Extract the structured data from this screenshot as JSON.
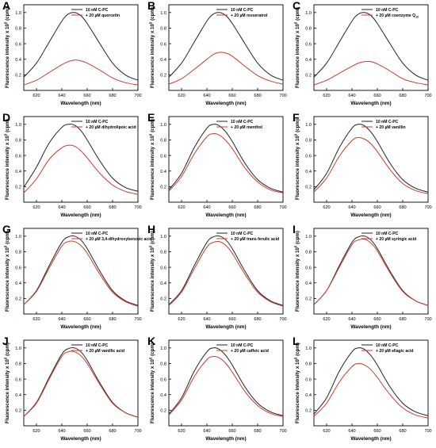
{
  "figure": {
    "x_axis_label": "Wavelength (nm)",
    "y_axis_label_prefix": "Fluorescence intensity x 10",
    "y_axis_label_exponent": "5",
    "y_axis_label_suffix": " (cpm)",
    "control_series_name": "10 nM C-PC",
    "colors": {
      "control": "#222222",
      "treated": "#d03a2a",
      "axis": "#000000"
    }
  },
  "chart_data": [
    {
      "panel": "A",
      "type": "line",
      "x": [
        610,
        620,
        630,
        640,
        645,
        650,
        655,
        660,
        670,
        680,
        690,
        700
      ],
      "xlim": [
        610,
        700
      ],
      "ylim": [
        0,
        1.1
      ],
      "xticks": [
        620,
        640,
        660,
        680,
        700
      ],
      "yticks": [
        0.2,
        0.4,
        0.6,
        0.8,
        1.0
      ],
      "series": [
        {
          "name": "10 nM C-PC",
          "values": [
            0.17,
            0.35,
            0.62,
            0.89,
            0.98,
            1.0,
            0.96,
            0.86,
            0.6,
            0.35,
            0.2,
            0.13
          ]
        },
        {
          "name": "+ 20  µM quercetin",
          "values": [
            0.07,
            0.13,
            0.23,
            0.33,
            0.37,
            0.39,
            0.38,
            0.35,
            0.26,
            0.16,
            0.1,
            0.07
          ]
        }
      ]
    },
    {
      "panel": "B",
      "type": "line",
      "x": [
        610,
        620,
        630,
        640,
        645,
        650,
        655,
        660,
        670,
        680,
        690,
        700
      ],
      "xlim": [
        610,
        700
      ],
      "ylim": [
        0,
        1.1
      ],
      "xticks": [
        620,
        640,
        660,
        680,
        700
      ],
      "yticks": [
        0.2,
        0.4,
        0.6,
        0.8,
        1.0
      ],
      "series": [
        {
          "name": "10 nM C-PC",
          "values": [
            0.17,
            0.35,
            0.62,
            0.89,
            0.98,
            1.0,
            0.96,
            0.86,
            0.6,
            0.35,
            0.2,
            0.13
          ]
        },
        {
          "name": "+ 20  µM resveratrol",
          "values": [
            0.08,
            0.15,
            0.27,
            0.4,
            0.46,
            0.49,
            0.48,
            0.44,
            0.31,
            0.19,
            0.12,
            0.08
          ]
        }
      ]
    },
    {
      "panel": "C",
      "type": "line",
      "x": [
        610,
        620,
        630,
        640,
        645,
        650,
        655,
        660,
        670,
        680,
        690,
        700
      ],
      "xlim": [
        610,
        700
      ],
      "ylim": [
        0,
        1.1
      ],
      "xticks": [
        620,
        640,
        660,
        680,
        700
      ],
      "yticks": [
        0.2,
        0.4,
        0.6,
        0.8,
        1.0
      ],
      "series": [
        {
          "name": "10 nM C-PC",
          "values": [
            0.17,
            0.35,
            0.62,
            0.89,
            0.98,
            1.0,
            0.96,
            0.86,
            0.6,
            0.35,
            0.2,
            0.13
          ]
        },
        {
          "name": "+ 20  µM coenzyme Q",
          "name_subscript": "10",
          "values": [
            0.07,
            0.13,
            0.22,
            0.31,
            0.35,
            0.37,
            0.37,
            0.34,
            0.25,
            0.15,
            0.1,
            0.07
          ]
        }
      ]
    },
    {
      "panel": "D",
      "type": "line",
      "x": [
        610,
        620,
        630,
        640,
        645,
        650,
        655,
        660,
        670,
        680,
        690,
        700
      ],
      "xlim": [
        610,
        700
      ],
      "ylim": [
        0,
        1.1
      ],
      "xticks": [
        620,
        640,
        660,
        680,
        700
      ],
      "yticks": [
        0.2,
        0.4,
        0.6,
        0.8,
        1.0
      ],
      "series": [
        {
          "name": "10 nM C-PC",
          "values": [
            0.19,
            0.45,
            0.76,
            0.96,
            1.0,
            0.99,
            0.92,
            0.8,
            0.53,
            0.31,
            0.19,
            0.14
          ]
        },
        {
          "name": "+ 20  µM dihydrolipoic acid",
          "values": [
            0.12,
            0.3,
            0.55,
            0.7,
            0.73,
            0.72,
            0.66,
            0.57,
            0.37,
            0.22,
            0.14,
            0.1
          ]
        }
      ]
    },
    {
      "panel": "E",
      "type": "line",
      "x": [
        610,
        620,
        630,
        640,
        645,
        650,
        655,
        660,
        670,
        680,
        690,
        700
      ],
      "xlim": [
        610,
        700
      ],
      "ylim": [
        0,
        1.1
      ],
      "xticks": [
        620,
        640,
        660,
        680,
        700
      ],
      "yticks": [
        0.2,
        0.4,
        0.6,
        0.8,
        1.0
      ],
      "series": [
        {
          "name": "10 nM C-PC",
          "values": [
            0.16,
            0.37,
            0.7,
            0.95,
            1.0,
            0.98,
            0.9,
            0.78,
            0.5,
            0.29,
            0.18,
            0.13
          ]
        },
        {
          "name": "+ 20  µM menthol",
          "values": [
            0.14,
            0.33,
            0.62,
            0.84,
            0.88,
            0.86,
            0.79,
            0.69,
            0.44,
            0.26,
            0.16,
            0.12
          ]
        }
      ]
    },
    {
      "panel": "F",
      "type": "line",
      "x": [
        610,
        620,
        630,
        640,
        645,
        650,
        655,
        660,
        670,
        680,
        690,
        700
      ],
      "xlim": [
        610,
        700
      ],
      "ylim": [
        0,
        1.1
      ],
      "xticks": [
        620,
        640,
        660,
        680,
        700
      ],
      "yticks": [
        0.2,
        0.4,
        0.6,
        0.8,
        1.0
      ],
      "series": [
        {
          "name": "10 nM C-PC",
          "values": [
            0.16,
            0.37,
            0.7,
            0.95,
            1.0,
            0.98,
            0.9,
            0.78,
            0.5,
            0.29,
            0.18,
            0.13
          ]
        },
        {
          "name": "+ 20  µM vanillin",
          "values": [
            0.13,
            0.31,
            0.59,
            0.79,
            0.83,
            0.81,
            0.75,
            0.65,
            0.42,
            0.24,
            0.15,
            0.11
          ]
        }
      ]
    },
    {
      "panel": "G",
      "type": "line",
      "x": [
        610,
        620,
        630,
        640,
        645,
        650,
        655,
        660,
        670,
        680,
        690,
        700
      ],
      "xlim": [
        610,
        700
      ],
      "ylim": [
        0,
        1.1
      ],
      "xticks": [
        620,
        640,
        660,
        680,
        700
      ],
      "yticks": [
        0.2,
        0.4,
        0.6,
        0.8,
        1.0
      ],
      "series": [
        {
          "name": "10 nM C-PC",
          "values": [
            0.12,
            0.3,
            0.62,
            0.92,
            0.99,
            1.0,
            0.95,
            0.84,
            0.55,
            0.3,
            0.17,
            0.11
          ]
        },
        {
          "name": "+ 20  µM 3,4-dihydroxybenzoic acid",
          "values": [
            0.12,
            0.29,
            0.59,
            0.87,
            0.93,
            0.93,
            0.88,
            0.78,
            0.51,
            0.28,
            0.16,
            0.1
          ]
        }
      ]
    },
    {
      "panel": "H",
      "type": "line",
      "x": [
        610,
        620,
        630,
        640,
        645,
        650,
        655,
        660,
        670,
        680,
        690,
        700
      ],
      "xlim": [
        610,
        700
      ],
      "ylim": [
        0,
        1.1
      ],
      "xticks": [
        620,
        640,
        660,
        680,
        700
      ],
      "yticks": [
        0.2,
        0.4,
        0.6,
        0.8,
        1.0
      ],
      "series": [
        {
          "name": "10 nM C-PC",
          "values": [
            0.12,
            0.3,
            0.62,
            0.92,
            0.99,
            1.0,
            0.95,
            0.84,
            0.55,
            0.3,
            0.17,
            0.11
          ]
        },
        {
          "name": "+ 20  µM trans-ferulic acid",
          "values": [
            0.11,
            0.28,
            0.58,
            0.86,
            0.92,
            0.93,
            0.88,
            0.78,
            0.51,
            0.28,
            0.16,
            0.1
          ]
        }
      ]
    },
    {
      "panel": "I",
      "type": "line",
      "x": [
        610,
        620,
        630,
        640,
        645,
        650,
        655,
        660,
        670,
        680,
        690,
        700
      ],
      "xlim": [
        610,
        700
      ],
      "ylim": [
        0,
        1.1
      ],
      "xticks": [
        620,
        640,
        660,
        680,
        700
      ],
      "yticks": [
        0.2,
        0.4,
        0.6,
        0.8,
        1.0
      ],
      "series": [
        {
          "name": "10 nM C-PC",
          "values": [
            0.12,
            0.3,
            0.62,
            0.92,
            0.99,
            1.0,
            0.95,
            0.84,
            0.55,
            0.3,
            0.17,
            0.11
          ]
        },
        {
          "name": "+ 20  µM syringic acid",
          "values": [
            0.12,
            0.3,
            0.6,
            0.89,
            0.95,
            0.96,
            0.91,
            0.81,
            0.53,
            0.29,
            0.17,
            0.11
          ]
        }
      ]
    },
    {
      "panel": "J",
      "type": "line",
      "x": [
        610,
        620,
        630,
        640,
        645,
        650,
        655,
        660,
        670,
        680,
        690,
        700
      ],
      "xlim": [
        610,
        700
      ],
      "ylim": [
        0,
        1.1
      ],
      "xticks": [
        620,
        640,
        660,
        680,
        700
      ],
      "yticks": [
        0.2,
        0.4,
        0.6,
        0.8,
        1.0
      ],
      "series": [
        {
          "name": "10 nM C-PC",
          "values": [
            0.12,
            0.3,
            0.62,
            0.92,
            0.99,
            1.0,
            0.95,
            0.84,
            0.55,
            0.3,
            0.17,
            0.11
          ]
        },
        {
          "name": "+ 20  µM vanillic acid",
          "values": [
            0.12,
            0.29,
            0.6,
            0.89,
            0.95,
            0.95,
            0.9,
            0.8,
            0.53,
            0.29,
            0.17,
            0.11
          ]
        }
      ]
    },
    {
      "panel": "K",
      "type": "line",
      "x": [
        610,
        620,
        630,
        640,
        645,
        650,
        655,
        660,
        670,
        680,
        690,
        700
      ],
      "xlim": [
        610,
        700
      ],
      "ylim": [
        0,
        1.1
      ],
      "xticks": [
        620,
        640,
        660,
        680,
        700
      ],
      "yticks": [
        0.2,
        0.4,
        0.6,
        0.8,
        1.0
      ],
      "series": [
        {
          "name": "10 nM C-PC",
          "values": [
            0.15,
            0.36,
            0.7,
            0.95,
            1.0,
            0.98,
            0.9,
            0.78,
            0.5,
            0.29,
            0.18,
            0.13
          ]
        },
        {
          "name": "+ 20  µM caffeic acid",
          "values": [
            0.14,
            0.33,
            0.63,
            0.85,
            0.89,
            0.87,
            0.8,
            0.69,
            0.44,
            0.26,
            0.16,
            0.12
          ]
        }
      ]
    },
    {
      "panel": "L",
      "type": "line",
      "x": [
        610,
        620,
        630,
        640,
        645,
        650,
        655,
        660,
        670,
        680,
        690,
        700
      ],
      "xlim": [
        610,
        700
      ],
      "ylim": [
        0,
        1.1
      ],
      "xticks": [
        620,
        640,
        660,
        680,
        700
      ],
      "yticks": [
        0.2,
        0.4,
        0.6,
        0.8,
        1.0
      ],
      "series": [
        {
          "name": "10 nM C-PC",
          "values": [
            0.15,
            0.36,
            0.7,
            0.95,
            1.0,
            0.98,
            0.9,
            0.78,
            0.5,
            0.29,
            0.18,
            0.13
          ]
        },
        {
          "name": "+ 20  µM ellagic acid",
          "values": [
            0.12,
            0.29,
            0.56,
            0.76,
            0.8,
            0.78,
            0.72,
            0.62,
            0.4,
            0.23,
            0.14,
            0.1
          ]
        }
      ]
    }
  ]
}
